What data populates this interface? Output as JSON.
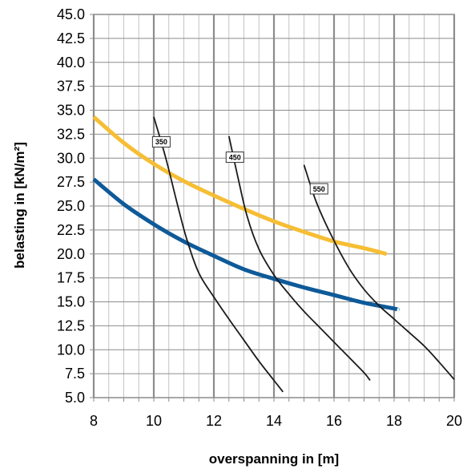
{
  "chart_data": {
    "type": "line",
    "xlabel": "overspanning in [m]",
    "ylabel": "belasting in [kN/m²]",
    "xlim": [
      8,
      20
    ],
    "ylim": [
      5,
      45
    ],
    "x_ticks": [
      "8",
      "10",
      "12",
      "14",
      "16",
      "18",
      "20"
    ],
    "y_ticks": [
      "5.0",
      "7.5",
      "10.0",
      "12.5",
      "15.0",
      "17.5",
      "20.0",
      "22.5",
      "25.0",
      "27.5",
      "30.0",
      "32.5",
      "35.0",
      "37.5",
      "40.0",
      "42.5",
      "45.0"
    ],
    "x_major_step": 2,
    "x_minor_step": 0.5,
    "y_grid_step": 2.5,
    "grid": true,
    "legend": "none",
    "colors": {
      "yellow": "#f6be34",
      "blue": "#0e5a99",
      "black": "#1a1a1a",
      "major_grid": "#8c8c8c",
      "minor_grid": "#c4c4c4"
    },
    "series": [
      {
        "color": "#f6be34",
        "points": [
          [
            8,
            34.3
          ],
          [
            9,
            31.6
          ],
          [
            10,
            29.4
          ],
          [
            11,
            27.6
          ],
          [
            12,
            26.1
          ],
          [
            13,
            24.7
          ],
          [
            14,
            23.4
          ],
          [
            15,
            22.3
          ],
          [
            16,
            21.3
          ],
          [
            17,
            20.6
          ],
          [
            17.75,
            20.0
          ]
        ]
      },
      {
        "color": "#0e5a99",
        "points": [
          [
            8,
            27.8
          ],
          [
            9,
            25.2
          ],
          [
            10,
            23.1
          ],
          [
            11,
            21.3
          ],
          [
            12,
            19.8
          ],
          [
            13,
            18.4
          ],
          [
            14,
            17.4
          ],
          [
            15,
            16.5
          ],
          [
            16,
            15.7
          ],
          [
            17,
            14.9
          ],
          [
            18,
            14.3
          ],
          [
            18.1,
            14.2
          ]
        ]
      },
      {
        "color": "#1a1a1a",
        "label": "350",
        "points": [
          [
            10,
            34.3
          ],
          [
            10.4,
            30.0
          ],
          [
            10.8,
            25.0
          ],
          [
            11.1,
            21.5
          ],
          [
            11.5,
            18.0
          ],
          [
            12,
            15.5
          ],
          [
            12.5,
            13.2
          ],
          [
            13,
            11.0
          ],
          [
            13.5,
            8.8
          ],
          [
            14,
            6.8
          ],
          [
            14.3,
            5.6
          ]
        ]
      },
      {
        "color": "#1a1a1a",
        "label": "450",
        "points": [
          [
            12.5,
            32.3
          ],
          [
            12.8,
            28.0
          ],
          [
            13.1,
            24.0
          ],
          [
            13.5,
            20.5
          ],
          [
            14,
            17.8
          ],
          [
            14.5,
            15.8
          ],
          [
            15,
            14.0
          ],
          [
            15.5,
            12.4
          ],
          [
            16,
            10.8
          ],
          [
            16.5,
            9.2
          ],
          [
            17,
            7.6
          ],
          [
            17.2,
            6.8
          ]
        ]
      },
      {
        "color": "#1a1a1a",
        "label": "550",
        "points": [
          [
            15,
            29.3
          ],
          [
            15.4,
            25.5
          ],
          [
            15.9,
            22.0
          ],
          [
            16.5,
            18.5
          ],
          [
            17,
            16.3
          ],
          [
            17.5,
            14.6
          ],
          [
            18,
            13.2
          ],
          [
            18.5,
            11.8
          ],
          [
            19,
            10.4
          ],
          [
            19.5,
            8.7
          ],
          [
            20,
            6.9
          ]
        ]
      }
    ],
    "annotations": [
      {
        "text": "350",
        "x": 10.25,
        "y": 31.7
      },
      {
        "text": "450",
        "x": 12.7,
        "y": 30.1
      },
      {
        "text": "550",
        "x": 15.5,
        "y": 26.8
      }
    ]
  }
}
